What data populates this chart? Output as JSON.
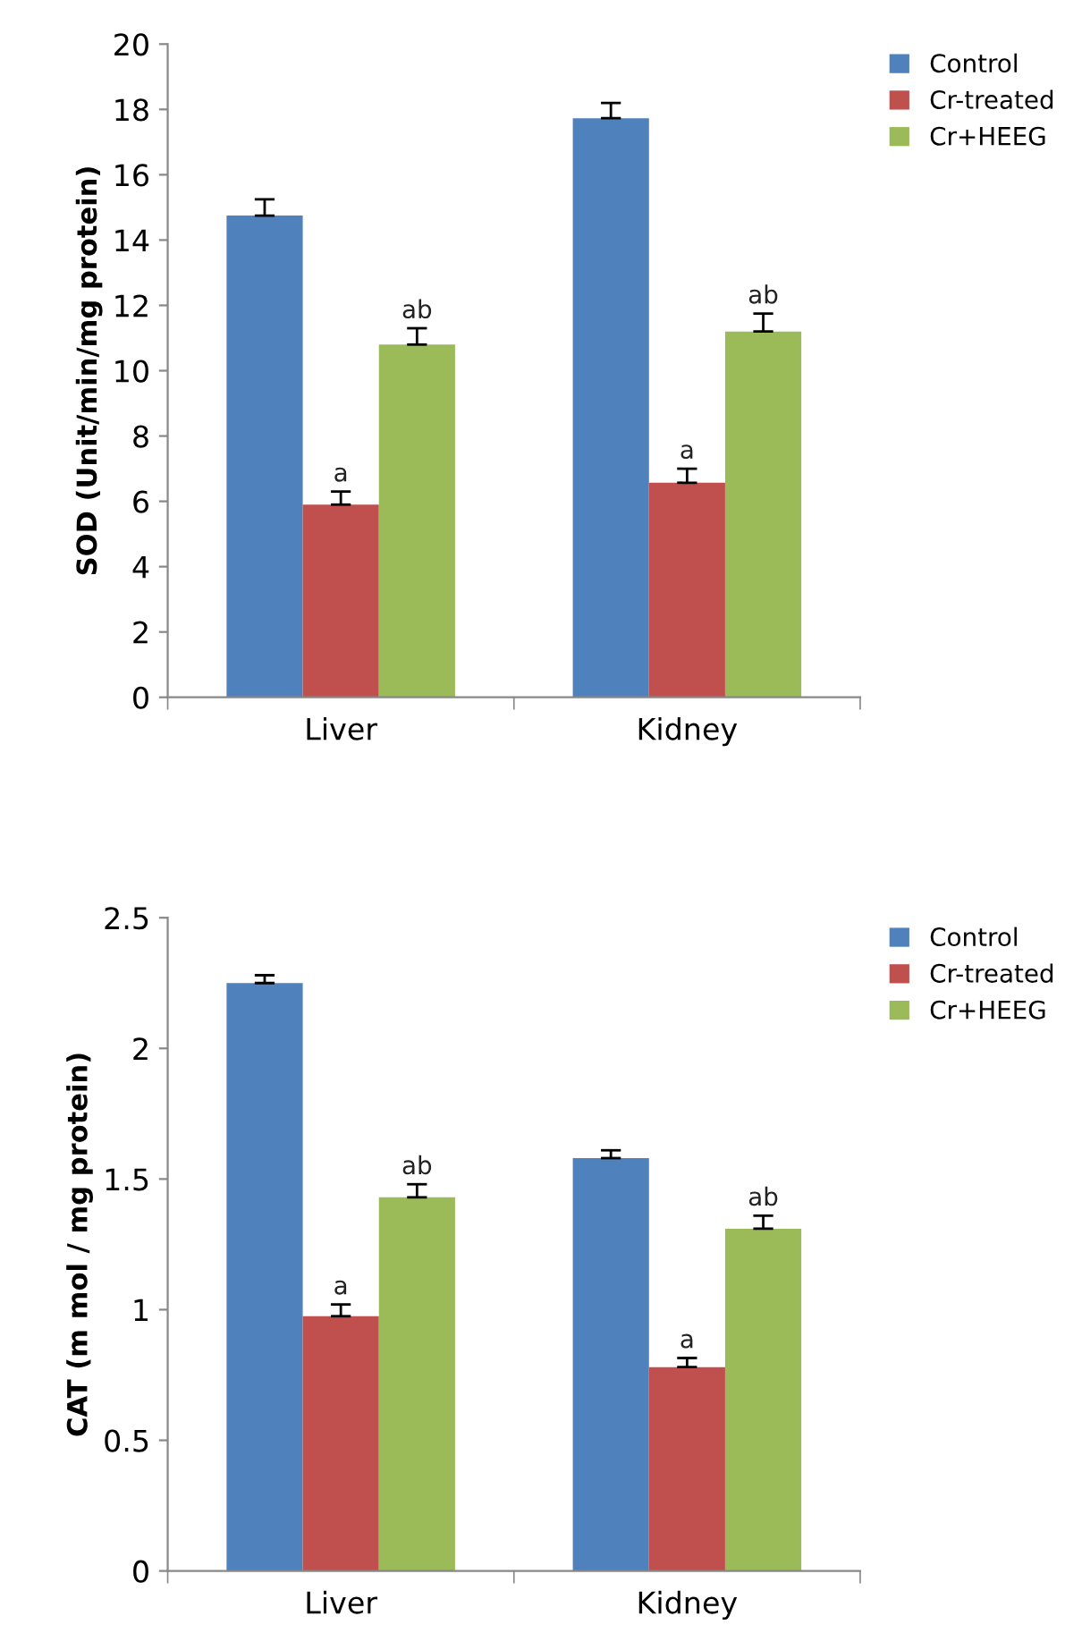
{
  "chart_data": [
    {
      "type": "bar",
      "ylabel": "SOD (Unit/min/mg protein)",
      "categories": [
        "Liver",
        "Kidney"
      ],
      "ylim": [
        0,
        20
      ],
      "yticks": [
        0,
        2,
        4,
        6,
        8,
        10,
        12,
        14,
        16,
        18,
        20
      ],
      "legend": "top right",
      "grid": false,
      "series": [
        {
          "name": "Control",
          "color": "#4f81bd",
          "values": [
            14.75,
            17.73
          ],
          "errors": [
            [
              14.75,
              15.25
            ],
            [
              17.73,
              18.2
            ]
          ]
        },
        {
          "name": "Cr-treated",
          "color": "#c0504d",
          "values": [
            5.9,
            6.57
          ],
          "errors": [
            [
              5.9,
              6.3
            ],
            [
              6.57,
              7.0
            ]
          ],
          "value_labels": [
            "a",
            "a"
          ]
        },
        {
          "name": "Cr+HEEG",
          "color": "#9bbb59",
          "values": [
            10.8,
            11.2
          ],
          "errors": [
            [
              10.8,
              11.3
            ],
            [
              11.2,
              11.75
            ]
          ],
          "value_labels": [
            "ab",
            "ab"
          ]
        }
      ]
    },
    {
      "type": "bar",
      "ylabel": "CAT (m mol / mg protein)",
      "categories": [
        "Liver",
        "Kidney"
      ],
      "ylim": [
        0,
        2.5
      ],
      "yticks": [
        0,
        0.5,
        1,
        1.5,
        2,
        2.5
      ],
      "legend": "top right",
      "grid": false,
      "series": [
        {
          "name": "Control",
          "color": "#4f81bd",
          "values": [
            2.25,
            1.58
          ],
          "errors": [
            [
              2.25,
              2.28
            ],
            [
              1.58,
              1.61
            ]
          ]
        },
        {
          "name": "Cr-treated",
          "color": "#c0504d",
          "values": [
            0.975,
            0.78
          ],
          "errors": [
            [
              0.975,
              1.02
            ],
            [
              0.78,
              0.815
            ]
          ],
          "value_labels": [
            "a",
            "a"
          ]
        },
        {
          "name": "Cr+HEEG",
          "color": "#9bbb59",
          "values": [
            1.43,
            1.31
          ],
          "errors": [
            [
              1.43,
              1.48
            ],
            [
              1.31,
              1.36
            ]
          ],
          "value_labels": [
            "ab",
            "ab"
          ]
        }
      ]
    }
  ]
}
